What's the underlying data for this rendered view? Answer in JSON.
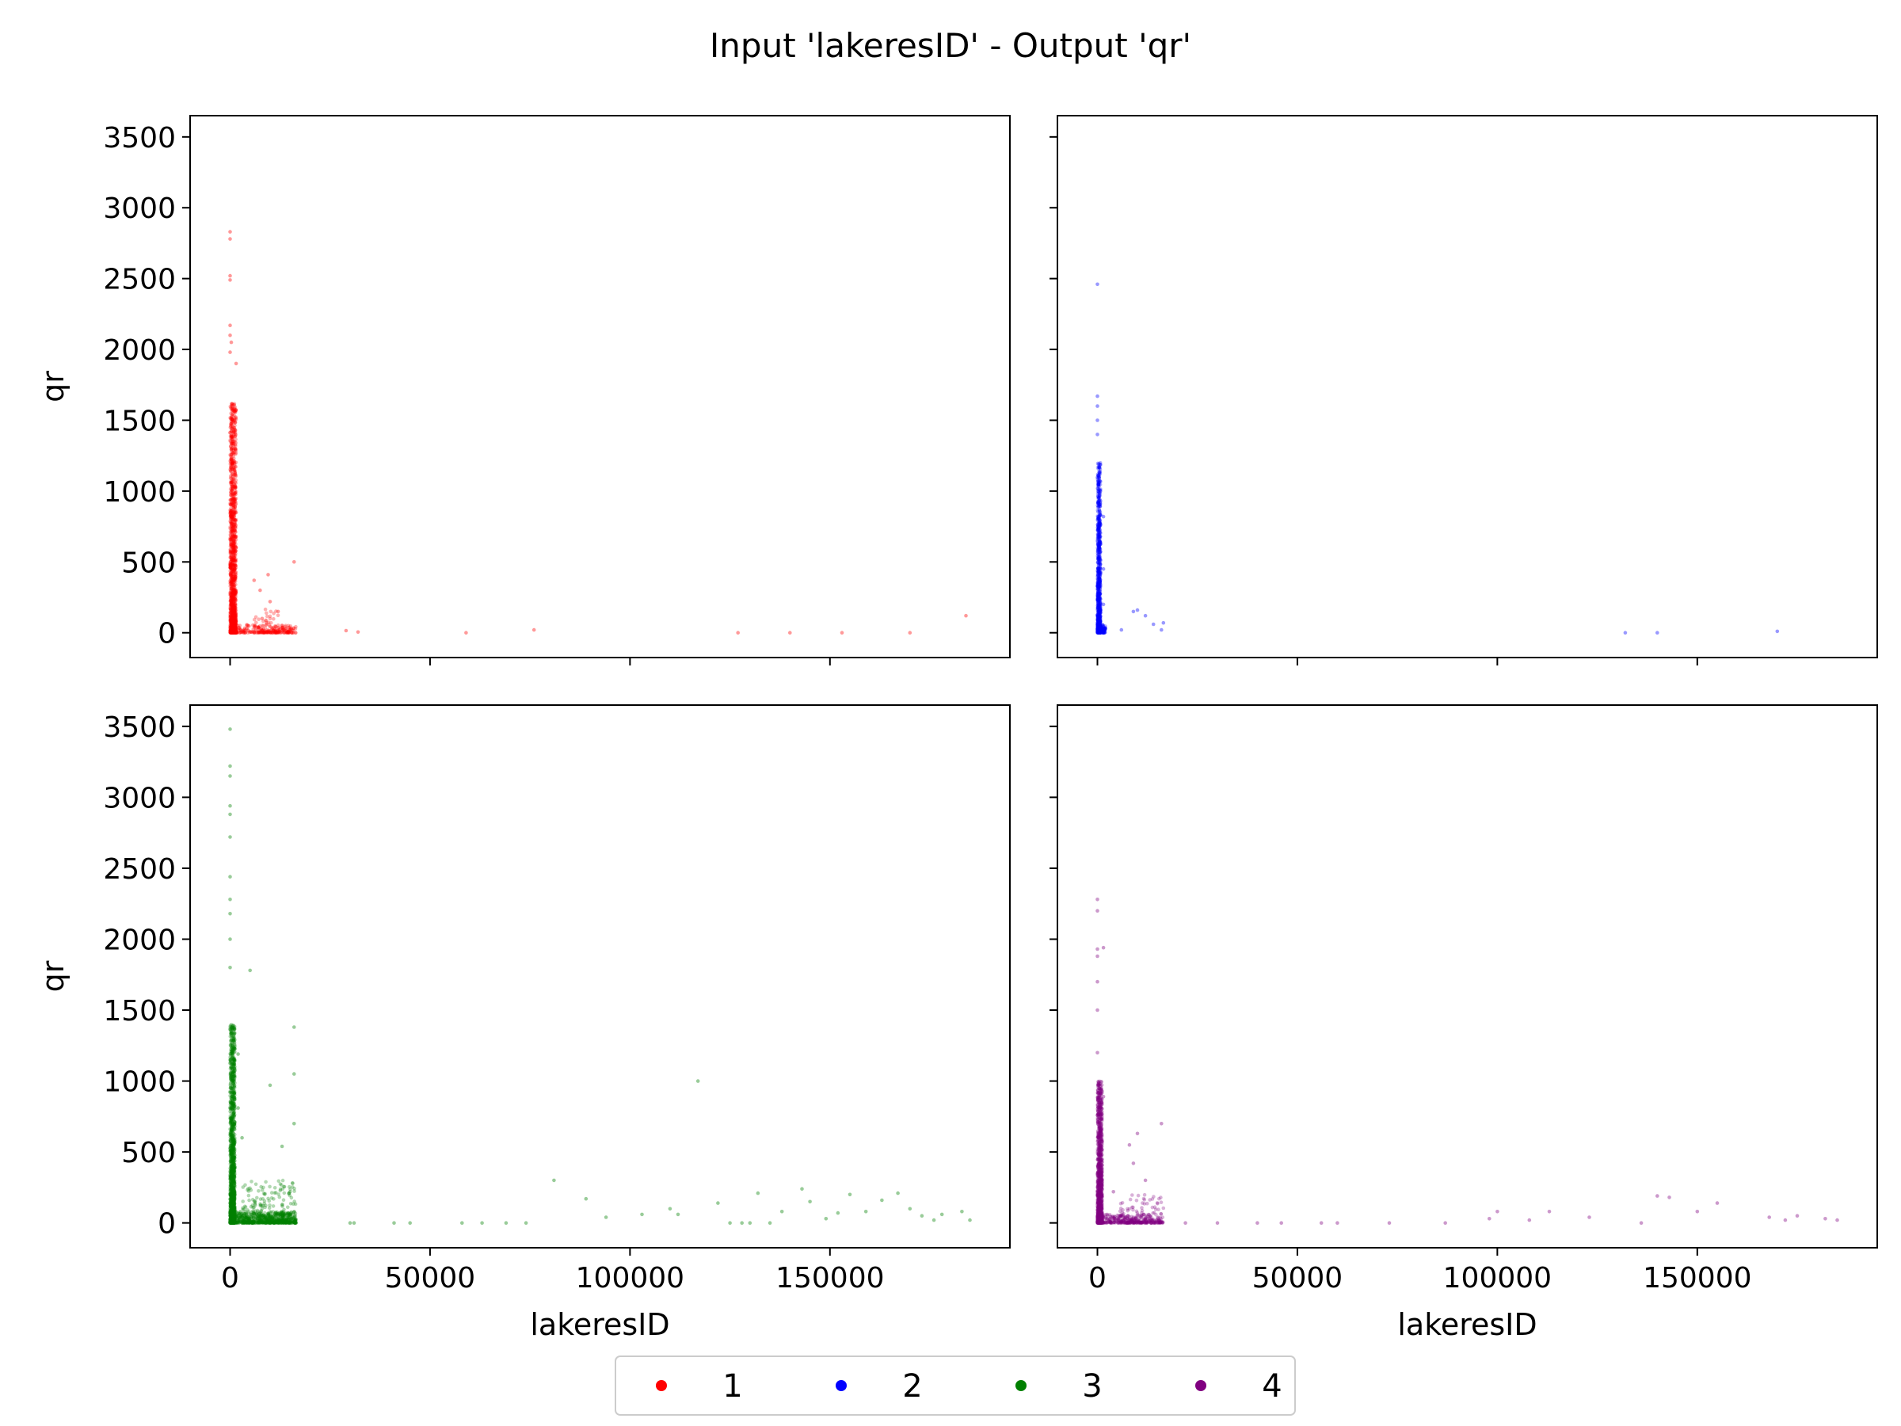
{
  "chart_data": {
    "type": "scatter",
    "title": "Input 'lakeresID' - Output 'qr'",
    "xlabel": "lakeresID",
    "ylabel": "qr",
    "xlim": [
      -10000,
      195000
    ],
    "ylim": [
      -175,
      3650
    ],
    "xticks": [
      0,
      50000,
      100000,
      150000
    ],
    "yticks": [
      0,
      500,
      1000,
      1500,
      2000,
      2500,
      3000,
      3500
    ],
    "grid": false,
    "legend": {
      "placement": "bottom-center",
      "entries": [
        "1",
        "2",
        "3",
        "4"
      ]
    },
    "colors": {
      "1": "#ff0000",
      "2": "#0000ff",
      "3": "#008000",
      "4": "#800080"
    },
    "series": [
      {
        "name": "1",
        "color": "#ff0000",
        "dense_clusters": [
          {
            "x_range": [
              0,
              1500
            ],
            "y_range": [
              0,
              1620
            ],
            "count": 1400
          },
          {
            "x_range": [
              0,
              16500
            ],
            "y_range": [
              0,
              60
            ],
            "count": 250
          },
          {
            "x_range": [
              6000,
              12000
            ],
            "y_range": [
              0,
              170
            ],
            "count": 40
          }
        ],
        "points": [
          [
            0,
            2830
          ],
          [
            0,
            2780
          ],
          [
            0,
            2520
          ],
          [
            0,
            2490
          ],
          [
            0,
            2170
          ],
          [
            0,
            2100
          ],
          [
            300,
            2050
          ],
          [
            0,
            1980
          ],
          [
            1500,
            1900
          ],
          [
            1500,
            850
          ],
          [
            1500,
            680
          ],
          [
            1500,
            600
          ],
          [
            6000,
            370
          ],
          [
            9500,
            410
          ],
          [
            7500,
            300
          ],
          [
            16000,
            500
          ],
          [
            10000,
            220
          ],
          [
            12000,
            150
          ],
          [
            8000,
            100
          ],
          [
            14000,
            30
          ],
          [
            29000,
            15
          ],
          [
            32000,
            5
          ],
          [
            59000,
            0
          ],
          [
            76000,
            20
          ],
          [
            127000,
            0
          ],
          [
            140000,
            0
          ],
          [
            153000,
            0
          ],
          [
            170000,
            0
          ],
          [
            184000,
            120
          ]
        ]
      },
      {
        "name": "2",
        "color": "#0000ff",
        "dense_clusters": [
          {
            "x_range": [
              0,
              800
            ],
            "y_range": [
              0,
              1200
            ],
            "count": 900
          },
          {
            "x_range": [
              0,
              2000
            ],
            "y_range": [
              0,
              60
            ],
            "count": 120
          }
        ],
        "points": [
          [
            0,
            2460
          ],
          [
            0,
            1670
          ],
          [
            0,
            1600
          ],
          [
            0,
            1500
          ],
          [
            0,
            1400
          ],
          [
            1500,
            820
          ],
          [
            1500,
            450
          ],
          [
            1500,
            200
          ],
          [
            6000,
            20
          ],
          [
            9000,
            150
          ],
          [
            10000,
            160
          ],
          [
            12000,
            120
          ],
          [
            14000,
            60
          ],
          [
            16000,
            20
          ],
          [
            16500,
            70
          ],
          [
            132000,
            0
          ],
          [
            140000,
            0
          ],
          [
            170000,
            10
          ]
        ]
      },
      {
        "name": "3",
        "color": "#008000",
        "dense_clusters": [
          {
            "x_range": [
              0,
              1200
            ],
            "y_range": [
              0,
              1400
            ],
            "count": 1500
          },
          {
            "x_range": [
              0,
              16500
            ],
            "y_range": [
              0,
              80
            ],
            "count": 600
          },
          {
            "x_range": [
              3000,
              16500
            ],
            "y_range": [
              0,
              300
            ],
            "count": 250
          }
        ],
        "points": [
          [
            0,
            3480
          ],
          [
            0,
            3220
          ],
          [
            0,
            3150
          ],
          [
            0,
            2940
          ],
          [
            0,
            2880
          ],
          [
            0,
            2720
          ],
          [
            0,
            2440
          ],
          [
            0,
            2280
          ],
          [
            0,
            2180
          ],
          [
            0,
            2000
          ],
          [
            0,
            1800
          ],
          [
            5000,
            1780
          ],
          [
            2000,
            1190
          ],
          [
            16000,
            1380
          ],
          [
            16000,
            1050
          ],
          [
            10000,
            970
          ],
          [
            2000,
            810
          ],
          [
            3000,
            600
          ],
          [
            16000,
            700
          ],
          [
            13000,
            540
          ],
          [
            30000,
            0
          ],
          [
            31000,
            0
          ],
          [
            41000,
            0
          ],
          [
            45000,
            0
          ],
          [
            58000,
            0
          ],
          [
            63000,
            0
          ],
          [
            69000,
            0
          ],
          [
            74000,
            0
          ],
          [
            81000,
            300
          ],
          [
            89000,
            170
          ],
          [
            94000,
            40
          ],
          [
            103000,
            60
          ],
          [
            110000,
            100
          ],
          [
            112000,
            60
          ],
          [
            117000,
            1000
          ],
          [
            122000,
            140
          ],
          [
            125000,
            0
          ],
          [
            128000,
            0
          ],
          [
            130000,
            0
          ],
          [
            132000,
            210
          ],
          [
            135000,
            0
          ],
          [
            138000,
            80
          ],
          [
            143000,
            240
          ],
          [
            145000,
            150
          ],
          [
            149000,
            30
          ],
          [
            152000,
            70
          ],
          [
            155000,
            200
          ],
          [
            159000,
            80
          ],
          [
            163000,
            160
          ],
          [
            167000,
            210
          ],
          [
            170000,
            100
          ],
          [
            173000,
            50
          ],
          [
            176000,
            20
          ],
          [
            178000,
            60
          ],
          [
            183000,
            80
          ],
          [
            185000,
            20
          ]
        ]
      },
      {
        "name": "4",
        "color": "#800080",
        "dense_clusters": [
          {
            "x_range": [
              0,
              1200
            ],
            "y_range": [
              0,
              1000
            ],
            "count": 1200
          },
          {
            "x_range": [
              0,
              16500
            ],
            "y_range": [
              0,
              60
            ],
            "count": 300
          },
          {
            "x_range": [
              5000,
              16500
            ],
            "y_range": [
              0,
              200
            ],
            "count": 120
          }
        ],
        "points": [
          [
            0,
            2280
          ],
          [
            0,
            2200
          ],
          [
            0,
            1930
          ],
          [
            1500,
            1940
          ],
          [
            0,
            1880
          ],
          [
            0,
            1700
          ],
          [
            0,
            1500
          ],
          [
            0,
            1200
          ],
          [
            1500,
            890
          ],
          [
            10000,
            630
          ],
          [
            16000,
            700
          ],
          [
            8000,
            550
          ],
          [
            9000,
            420
          ],
          [
            12000,
            300
          ],
          [
            4000,
            220
          ],
          [
            22000,
            0
          ],
          [
            30000,
            0
          ],
          [
            40000,
            0
          ],
          [
            46000,
            0
          ],
          [
            56000,
            0
          ],
          [
            60000,
            0
          ],
          [
            73000,
            0
          ],
          [
            87000,
            0
          ],
          [
            98000,
            30
          ],
          [
            100000,
            80
          ],
          [
            108000,
            20
          ],
          [
            113000,
            80
          ],
          [
            123000,
            40
          ],
          [
            136000,
            0
          ],
          [
            140000,
            190
          ],
          [
            143000,
            180
          ],
          [
            150000,
            80
          ],
          [
            155000,
            140
          ],
          [
            168000,
            40
          ],
          [
            172000,
            20
          ],
          [
            175000,
            50
          ],
          [
            182000,
            30
          ],
          [
            185000,
            20
          ]
        ]
      }
    ]
  }
}
